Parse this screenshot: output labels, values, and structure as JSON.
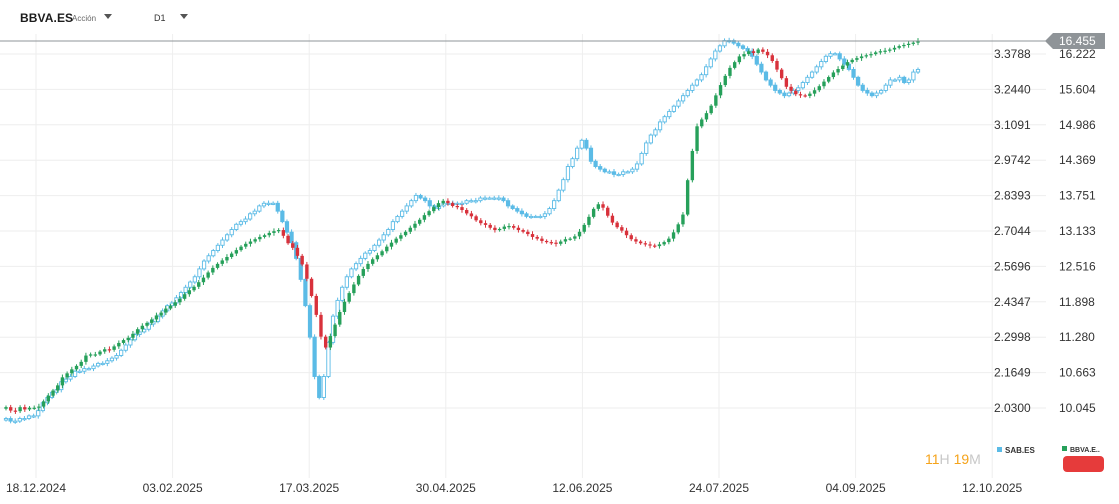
{
  "header": {
    "symbol": "BBVA.ES",
    "asset_type": "Acción",
    "timeframe": "D1"
  },
  "colors": {
    "up": "#26a05a",
    "down": "#d8313b",
    "compare": "#5bbbe6",
    "last_price_tag": "#8f9498",
    "grid": "#eeeeee",
    "timer_digits": "#f5a31a",
    "timer_units": "#c8c8c8",
    "alert_pill": "#e63b3b"
  },
  "last_price_label": "16.455",
  "timer": {
    "hours": "11",
    "hours_unit": "H",
    "minutes": "19",
    "minutes_unit": "M"
  },
  "legend": {
    "compare_label": "SAB.ES",
    "main_label": "BBVA.E.."
  },
  "chart_data": {
    "type": "candlestick",
    "x_tick_labels": [
      "18.12.2024",
      "03.02.2025",
      "17.03.2025",
      "30.04.2025",
      "12.06.2025",
      "24.07.2025",
      "04.09.2025",
      "12.10.2025"
    ],
    "right_axis": {
      "series": "BBVA.ES",
      "ticks": [
        "16.222",
        "15.604",
        "14.986",
        "14.369",
        "13.751",
        "13.133",
        "12.516",
        "11.898",
        "11.280",
        "10.663",
        "10.045"
      ],
      "range": [
        9.7,
        16.7
      ]
    },
    "left_axis": {
      "series": "SAB.ES",
      "ticks": [
        "3.3788",
        "3.2440",
        "3.1091",
        "2.9742",
        "2.8393",
        "2.7044",
        "2.5696",
        "2.4347",
        "2.2998",
        "2.1649",
        "2.0300"
      ],
      "range": [
        1.96,
        3.47
      ]
    },
    "series": [
      {
        "name": "BBVA.ES",
        "style": "red/green candles",
        "closes": [
          10.06,
          10.0,
          9.99,
          10.06,
          10.02,
          10.05,
          10.05,
          10.07,
          10.16,
          10.26,
          10.35,
          10.44,
          10.58,
          10.65,
          10.72,
          10.78,
          10.85,
          10.96,
          10.98,
          10.98,
          11.03,
          11.07,
          11.06,
          11.12,
          11.18,
          11.23,
          11.27,
          11.34,
          11.42,
          11.48,
          11.53,
          11.59,
          11.66,
          11.71,
          11.78,
          11.83,
          11.89,
          11.95,
          12.03,
          12.1,
          12.16,
          12.24,
          12.32,
          12.41,
          12.49,
          12.56,
          12.62,
          12.68,
          12.74,
          12.8,
          12.86,
          12.91,
          12.95,
          12.99,
          13.03,
          13.06,
          13.1,
          13.13,
          13.15,
          13.05,
          12.92,
          12.84,
          12.7,
          12.55,
          12.3,
          12.0,
          11.67,
          11.29,
          11.1,
          11.3,
          11.5,
          11.72,
          11.9,
          12.05,
          12.2,
          12.35,
          12.47,
          12.56,
          12.64,
          12.71,
          12.78,
          12.86,
          12.93,
          13.0,
          13.06,
          13.12,
          13.19,
          13.26,
          13.33,
          13.41,
          13.48,
          13.55,
          13.62,
          13.66,
          13.62,
          13.57,
          13.55,
          13.5,
          13.44,
          13.39,
          13.32,
          13.27,
          13.24,
          13.19,
          13.15,
          13.17,
          13.21,
          13.22,
          13.19,
          13.15,
          13.12,
          13.08,
          13.03,
          13.0,
          12.96,
          12.94,
          12.93,
          12.91,
          12.95,
          12.99,
          13.0,
          13.04,
          13.12,
          13.24,
          13.38,
          13.52,
          13.6,
          13.54,
          13.4,
          13.28,
          13.2,
          13.14,
          13.06,
          12.99,
          12.95,
          12.92,
          12.9,
          12.88,
          12.87,
          12.9,
          12.94,
          13.0,
          13.11,
          13.25,
          13.42,
          14.02,
          14.53,
          14.96,
          15.08,
          15.19,
          15.32,
          15.5,
          15.68,
          15.84,
          15.98,
          16.08,
          16.18,
          16.22,
          16.27,
          16.24,
          16.3,
          16.26,
          16.2,
          16.1,
          15.95,
          15.8,
          15.65,
          15.58,
          15.52,
          15.5,
          15.49,
          15.53,
          15.59,
          15.66,
          15.74,
          15.82,
          15.9,
          15.96,
          16.02,
          16.08,
          16.12,
          16.15,
          16.18,
          16.2,
          16.22,
          16.25,
          16.27,
          16.28,
          16.3,
          16.33,
          16.36,
          16.38,
          16.4,
          16.42,
          16.455
        ]
      },
      {
        "name": "SAB.ES",
        "style": "blue hollow candles",
        "closes": [
          1.99,
          1.98,
          1.98,
          1.99,
          1.99,
          2.0,
          2.0,
          2.02,
          2.05,
          2.07,
          2.09,
          2.1,
          2.13,
          2.14,
          2.15,
          2.17,
          2.17,
          2.18,
          2.18,
          2.19,
          2.2,
          2.2,
          2.21,
          2.22,
          2.23,
          2.25,
          2.27,
          2.29,
          2.31,
          2.32,
          2.33,
          2.35,
          2.36,
          2.38,
          2.4,
          2.42,
          2.43,
          2.45,
          2.47,
          2.49,
          2.51,
          2.53,
          2.56,
          2.59,
          2.61,
          2.63,
          2.65,
          2.67,
          2.69,
          2.71,
          2.73,
          2.74,
          2.75,
          2.77,
          2.78,
          2.8,
          2.81,
          2.81,
          2.81,
          2.78,
          2.74,
          2.7,
          2.66,
          2.6,
          2.52,
          2.42,
          2.3,
          2.15,
          2.07,
          2.15,
          2.28,
          2.38,
          2.44,
          2.49,
          2.53,
          2.56,
          2.58,
          2.6,
          2.62,
          2.63,
          2.65,
          2.67,
          2.69,
          2.71,
          2.74,
          2.76,
          2.78,
          2.8,
          2.82,
          2.84,
          2.83,
          2.82,
          2.8,
          2.79,
          2.8,
          2.81,
          2.81,
          2.81,
          2.81,
          2.81,
          2.82,
          2.82,
          2.82,
          2.83,
          2.83,
          2.83,
          2.83,
          2.83,
          2.82,
          2.8,
          2.79,
          2.78,
          2.77,
          2.76,
          2.76,
          2.76,
          2.76,
          2.77,
          2.79,
          2.82,
          2.86,
          2.9,
          2.95,
          2.98,
          3.02,
          3.05,
          3.02,
          2.97,
          2.95,
          2.94,
          2.93,
          2.93,
          2.92,
          2.92,
          2.93,
          2.93,
          2.94,
          2.96,
          3.0,
          3.04,
          3.07,
          3.09,
          3.12,
          3.14,
          3.16,
          3.18,
          3.2,
          3.22,
          3.24,
          3.26,
          3.28,
          3.3,
          3.33,
          3.36,
          3.39,
          3.41,
          3.43,
          3.43,
          3.42,
          3.41,
          3.4,
          3.39,
          3.37,
          3.34,
          3.31,
          3.28,
          3.26,
          3.24,
          3.23,
          3.22,
          3.23,
          3.24,
          3.25,
          3.27,
          3.29,
          3.31,
          3.33,
          3.35,
          3.37,
          3.38,
          3.38,
          3.36,
          3.34,
          3.32,
          3.29,
          3.26,
          3.24,
          3.23,
          3.22,
          3.23,
          3.24,
          3.26,
          3.28,
          3.28,
          3.29,
          3.27,
          3.28,
          3.31,
          3.32
        ]
      }
    ]
  }
}
